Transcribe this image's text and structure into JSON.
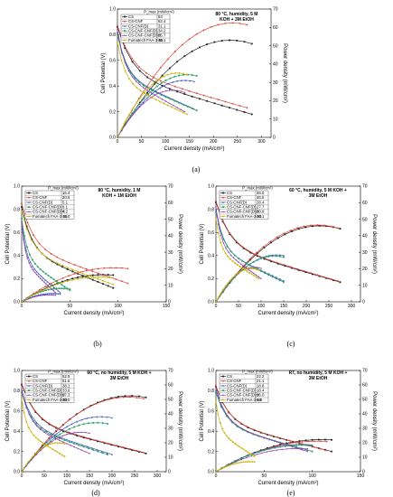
{
  "figure_labels": [
    "(a)",
    "(b)",
    "(c)",
    "(d)",
    "(e)"
  ],
  "colors": {
    "CS": "#1f1f1f",
    "CS-CNF": "#d9443a",
    "CS-CNF(D)": "#3b4fbf",
    "CS-CNF-CNF(D)": "#2f9e6a",
    "CS-CNF-CNF(D)H": "#8e3fb0",
    "Fumatech FAA-3-50": "#c9b200"
  },
  "chart_data": [
    {
      "type": "line",
      "label": "(a)",
      "annotation": [
        "80 °C, humidity, 5 M",
        "KOH + 3M EtOH"
      ],
      "legend_header": "P_max (mW/cm²)",
      "xlabel": "Current density (mA/cm²)",
      "ylabel": "Cell Potential (V)",
      "y2label": "Power density (mW/cm²)",
      "xlim": [
        0,
        320
      ],
      "xticks": [
        0,
        50,
        100,
        150,
        200,
        250,
        300
      ],
      "ylim": [
        0,
        1.0
      ],
      "yticks": [
        0.0,
        0.2,
        0.4,
        0.6,
        0.8,
        1.0
      ],
      "y2lim": [
        0,
        70
      ],
      "y2ticks": [
        0,
        10,
        20,
        30,
        40,
        50,
        60,
        70
      ],
      "series": [
        {
          "name": "CS",
          "pmax": "53",
          "ocv": 0.86,
          "vend": 0.18,
          "xmax": 280,
          "pkx": 235
        },
        {
          "name": "CS-CNF",
          "pmax": "62.4",
          "ocv": 0.87,
          "vend": 0.23,
          "xmax": 270,
          "pkx": 240
        },
        {
          "name": "CS-CNF(D)",
          "pmax": "31.1",
          "ocv": 0.82,
          "vend": 0.22,
          "xmax": 160,
          "pkx": 140
        },
        {
          "name": "CS-CNF-CNF(D)",
          "pmax": "34.2",
          "ocv": 0.8,
          "vend": 0.21,
          "xmax": 165,
          "pkx": 145
        },
        {
          "name": "CS-CNF-CNF(D)H",
          "pmax": "25.7",
          "ocv": 0.84,
          "vend": 0.2,
          "xmax": 140,
          "pkx": 115
        },
        {
          "name": "Fumatech FAA-3-50",
          "pmax": "35.1",
          "ocv": 0.74,
          "vend": 0.18,
          "xmax": 145,
          "pkx": 125
        }
      ]
    },
    {
      "type": "line",
      "label": "(b)",
      "annotation": [
        "80 °C, humidity, 1 M",
        "KOH + 1M EtOH"
      ],
      "legend_header": "P_max (mW/cm²)",
      "xlabel": "Current density (mA/cm²)",
      "ylabel": "Cell Potential (V)",
      "y2label": "Power density (mW/cm²)",
      "xlim": [
        0,
        150
      ],
      "xticks": [
        0,
        50,
        100,
        150
      ],
      "ylim": [
        0,
        1.0
      ],
      "yticks": [
        0.0,
        0.2,
        0.4,
        0.6,
        0.8,
        1.0
      ],
      "y2lim": [
        0,
        70
      ],
      "y2ticks": [
        0,
        10,
        20,
        30,
        40,
        50,
        60,
        70
      ],
      "series": [
        {
          "name": "CS",
          "pmax": "16.4",
          "ocv": 0.82,
          "vend": 0.12,
          "xmax": 95,
          "pkx": 85
        },
        {
          "name": "CS-CNF",
          "pmax": "20.6",
          "ocv": 0.85,
          "vend": 0.16,
          "xmax": 110,
          "pkx": 95
        },
        {
          "name": "CS-CNF(D)",
          "pmax": "5.1",
          "ocv": 0.7,
          "vend": 0.08,
          "xmax": 40,
          "pkx": 32
        },
        {
          "name": "CS-CNF-CNF(D)",
          "pmax": "8.1",
          "ocv": 0.72,
          "vend": 0.1,
          "xmax": 50,
          "pkx": 40
        },
        {
          "name": "CS-CNF-CNF(D)H",
          "pmax": "4.2",
          "ocv": 0.68,
          "vend": 0.08,
          "xmax": 35,
          "pkx": 28
        },
        {
          "name": "Fumatech FAA-3-50",
          "pmax": "15.0",
          "ocv": 0.78,
          "vend": 0.15,
          "xmax": 95,
          "pkx": 80
        }
      ]
    },
    {
      "type": "line",
      "label": "(c)",
      "annotation": [
        "60 °C, humidity, 5 M KOH +",
        "3M EtOH"
      ],
      "legend_header": "P_max (mW/cm²)",
      "xlabel": "Current density (mA/cm²)",
      "ylabel": "Cell Potential (V)",
      "y2label": "Power density (mW/cm²)",
      "xlim": [
        0,
        320
      ],
      "xticks": [
        0,
        50,
        100,
        150,
        200,
        250,
        300
      ],
      "ylim": [
        0,
        1.0
      ],
      "yticks": [
        0.0,
        0.2,
        0.4,
        0.6,
        0.8,
        1.0
      ],
      "y2lim": [
        0,
        70
      ],
      "y2ticks": [
        0,
        10,
        20,
        30,
        40,
        50,
        60,
        70
      ],
      "series": [
        {
          "name": "CS",
          "pmax": "46.0",
          "ocv": 0.86,
          "vend": 0.17,
          "xmax": 275,
          "pkx": 230
        },
        {
          "name": "CS-CNF",
          "pmax": "46.5",
          "ocv": 0.87,
          "vend": 0.18,
          "xmax": 270,
          "pkx": 225
        },
        {
          "name": "CS-CNF(D)",
          "pmax": "28.4",
          "ocv": 0.8,
          "vend": 0.17,
          "xmax": 150,
          "pkx": 135
        },
        {
          "name": "CS-CNF-CNF(D)",
          "pmax": "27.7",
          "ocv": 0.78,
          "vend": 0.18,
          "xmax": 150,
          "pkx": 130
        },
        {
          "name": "CS-CNF-CNF(D)H",
          "pmax": "20.9",
          "ocv": 0.82,
          "vend": 0.2,
          "xmax": 100,
          "pkx": 85
        },
        {
          "name": "Fumatech FAA-3-50",
          "pmax": "20.1",
          "ocv": 0.72,
          "vend": 0.2,
          "xmax": 95,
          "pkx": 78
        }
      ]
    },
    {
      "type": "line",
      "label": "(d)",
      "annotation": [
        "60 °C, no humidity, 5 M KOH +",
        "3M EtOH"
      ],
      "legend_header": "P_max (mW/cm²)",
      "xlabel": "Current density (mA/cm²)",
      "ylabel": "Cell Potential (V)",
      "y2label": "Power density (mW/cm²)",
      "xlim": [
        0,
        320
      ],
      "xticks": [
        0,
        50,
        100,
        150,
        200,
        250,
        300
      ],
      "ylim": [
        0,
        1.0
      ],
      "yticks": [
        0.0,
        0.2,
        0.4,
        0.6,
        0.8,
        1.0
      ],
      "y2lim": [
        0,
        70
      ],
      "y2ticks": [
        0,
        10,
        20,
        30,
        40,
        50,
        60,
        70
      ],
      "series": [
        {
          "name": "CS",
          "pmax": "52.5",
          "ocv": 0.86,
          "vend": 0.18,
          "xmax": 275,
          "pkx": 240
        },
        {
          "name": "CS-CNF",
          "pmax": "51.6",
          "ocv": 0.87,
          "vend": 0.19,
          "xmax": 270,
          "pkx": 235
        },
        {
          "name": "CS-CNF(D)",
          "pmax": "38.1",
          "ocv": 0.8,
          "vend": 0.17,
          "xmax": 200,
          "pkx": 175
        },
        {
          "name": "CS-CNF-CNF(D)",
          "pmax": "33.9",
          "ocv": 0.78,
          "vend": 0.17,
          "xmax": 190,
          "pkx": 165
        },
        {
          "name": "CS-CNF-CNF(D)H",
          "pmax": "27.3",
          "ocv": 0.82,
          "vend": 0.18,
          "xmax": 150,
          "pkx": 130
        },
        {
          "name": "Fumatech FAA-3-50",
          "pmax": "20.0",
          "ocv": 0.72,
          "vend": 0.15,
          "xmax": 95,
          "pkx": 80
        }
      ]
    },
    {
      "type": "line",
      "label": "(e)",
      "annotation": [
        "RT, no humidity, 5 M KOH +",
        "3M EtOH"
      ],
      "legend_header": "P_max (mW/cm²)",
      "xlabel": "Current density (mA/cm²)",
      "ylabel": "Cell Potential (V)",
      "y2label": "Power density (mW/cm²)",
      "xlim": [
        0,
        150
      ],
      "xticks": [
        0,
        50,
        100,
        150
      ],
      "ylim": [
        0,
        1.0
      ],
      "yticks": [
        0.0,
        0.2,
        0.4,
        0.6,
        0.8,
        1.0
      ],
      "y2lim": [
        0,
        70
      ],
      "y2ticks": [
        0,
        10,
        20,
        30,
        40,
        50,
        60,
        70
      ],
      "series": [
        {
          "name": "CS",
          "pmax": "22.2",
          "ocv": 0.84,
          "vend": 0.2,
          "xmax": 120,
          "pkx": 110
        },
        {
          "name": "CS-CNF",
          "pmax": "21.1",
          "ocv": 0.85,
          "vend": 0.21,
          "xmax": 115,
          "pkx": 105
        },
        {
          "name": "CS-CNF(D)",
          "pmax": "18.8",
          "ocv": 0.8,
          "vend": 0.2,
          "xmax": 100,
          "pkx": 90
        },
        {
          "name": "CS-CNF-CNF(D)",
          "pmax": "18.4",
          "ocv": 0.78,
          "vend": 0.2,
          "xmax": 100,
          "pkx": 90
        },
        {
          "name": "CS-CNF-CNF(D)H",
          "pmax": "16.0",
          "ocv": 0.82,
          "vend": 0.2,
          "xmax": 95,
          "pkx": 85
        },
        {
          "name": "Fumatech FAA-3-50",
          "pmax": "6.9",
          "ocv": 0.7,
          "vend": 0.15,
          "xmax": 40,
          "pkx": 35
        }
      ]
    }
  ]
}
